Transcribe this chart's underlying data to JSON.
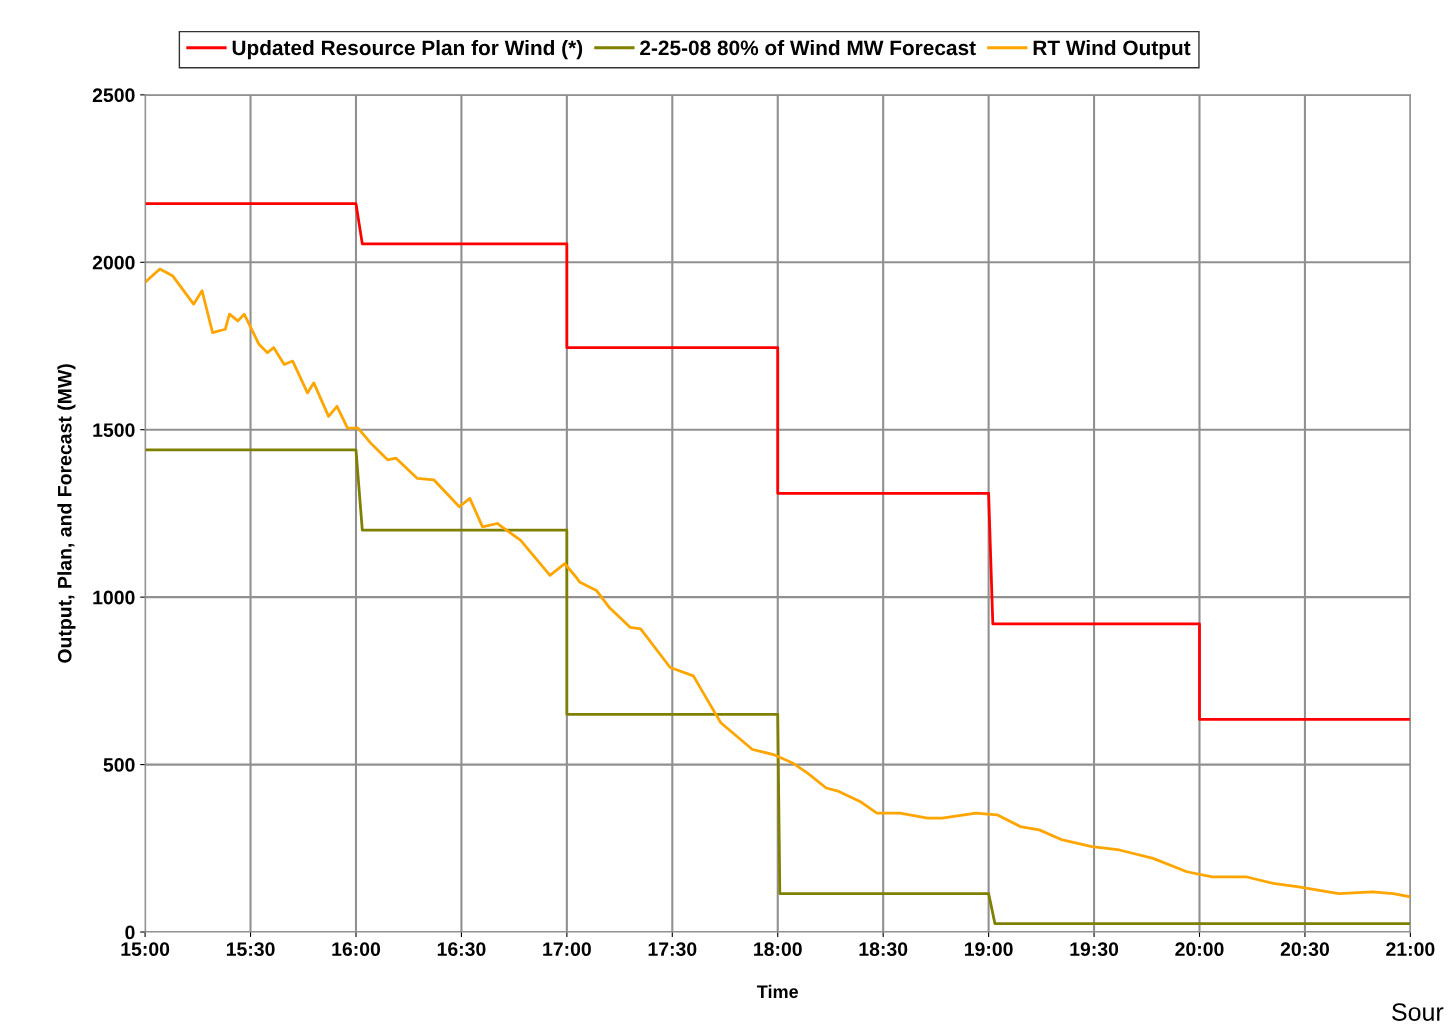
{
  "chart_data": {
    "type": "line",
    "xlabel": "Time",
    "ylabel": "Output, Plan, and Forecast (MW)",
    "xlim": [
      15,
      21
    ],
    "ylim": [
      0,
      2500
    ],
    "xticks": [
      {
        "value": 15,
        "label": "15:00"
      },
      {
        "value": 15.5,
        "label": "15:30"
      },
      {
        "value": 16,
        "label": "16:00"
      },
      {
        "value": 16.5,
        "label": "16:30"
      },
      {
        "value": 17,
        "label": "17:00"
      },
      {
        "value": 17.5,
        "label": "17:30"
      },
      {
        "value": 18,
        "label": "18:00"
      },
      {
        "value": 18.5,
        "label": "18:30"
      },
      {
        "value": 19,
        "label": "19:00"
      },
      {
        "value": 19.5,
        "label": "19:30"
      },
      {
        "value": 20,
        "label": "20:00"
      },
      {
        "value": 20.5,
        "label": "20:30"
      },
      {
        "value": 21,
        "label": "21:00"
      }
    ],
    "yticks": [
      0,
      500,
      1000,
      1500,
      2000,
      2500
    ],
    "grid": true,
    "legend": "top",
    "marker": "none",
    "line_style": "solid",
    "annotations": [
      "Sour"
    ],
    "series": [
      {
        "name": "Updated Resource Plan for Wind (*)",
        "color": "#ff0000",
        "x": [
          15,
          16,
          16.03,
          17,
          17,
          18,
          18,
          19,
          19.02,
          20,
          20,
          21
        ],
        "values": [
          2175,
          2175,
          2055,
          2055,
          1745,
          1745,
          1310,
          1310,
          920,
          920,
          635,
          635
        ]
      },
      {
        "name": "2-25-08 80% of Wind MW Forecast",
        "color": "#808000",
        "x": [
          15,
          16,
          16.03,
          17,
          17,
          18,
          18.01,
          19,
          19.03,
          21
        ],
        "values": [
          1440,
          1440,
          1200,
          1200,
          650,
          650,
          115,
          115,
          25,
          25
        ]
      },
      {
        "name": "RT Wind Output",
        "color": "#ffa500",
        "x": [
          15.0,
          15.07,
          15.13,
          15.23,
          15.27,
          15.32,
          15.38,
          15.4,
          15.44,
          15.47,
          15.54,
          15.58,
          15.61,
          15.66,
          15.7,
          15.77,
          15.8,
          15.87,
          15.91,
          15.96,
          16.01,
          16.07,
          16.15,
          16.19,
          16.29,
          16.37,
          16.49,
          16.54,
          16.6,
          16.67,
          16.78,
          16.92,
          16.99,
          17.05,
          17.06,
          17.14,
          17.2,
          17.3,
          17.35,
          17.49,
          17.6,
          17.66,
          17.73,
          17.88,
          17.98,
          18.07,
          18.14,
          18.23,
          18.29,
          18.39,
          18.47,
          18.58,
          18.71,
          18.78,
          18.94,
          19.04,
          19.15,
          19.24,
          19.35,
          19.49,
          19.62,
          19.78,
          19.94,
          20.06,
          20.22,
          20.35,
          20.47,
          20.66,
          20.82,
          20.92,
          21.0
        ],
        "values": [
          1940,
          1980,
          1960,
          1875,
          1915,
          1790,
          1800,
          1845,
          1825,
          1845,
          1755,
          1730,
          1745,
          1695,
          1705,
          1610,
          1640,
          1540,
          1570,
          1505,
          1505,
          1460,
          1410,
          1415,
          1355,
          1350,
          1270,
          1295,
          1210,
          1220,
          1170,
          1065,
          1100,
          1055,
          1045,
          1020,
          970,
          910,
          905,
          790,
          765,
          700,
          625,
          545,
          530,
          505,
          475,
          430,
          420,
          390,
          355,
          355,
          340,
          340,
          355,
          350,
          315,
          305,
          275,
          255,
          245,
          220,
          180,
          165,
          165,
          145,
          135,
          115,
          120,
          115,
          105
        ]
      }
    ]
  }
}
